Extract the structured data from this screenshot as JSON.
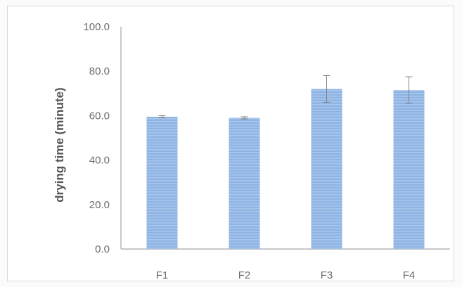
{
  "chart_data": {
    "type": "bar",
    "title": "",
    "xlabel": "",
    "ylabel": "drying time (minute)",
    "categories": [
      "F1",
      "F2",
      "F3",
      "F4"
    ],
    "values": [
      59.5,
      59.0,
      72.0,
      71.5
    ],
    "error": [
      0.5,
      0.5,
      6.0,
      6.0
    ],
    "ylim": [
      0,
      100
    ],
    "yticks": [
      "0.0",
      "20.0",
      "40.0",
      "60.0",
      "80.0",
      "100.0"
    ],
    "grid": false,
    "legend": "none",
    "colors": {
      "bar": "#8eb4e3",
      "bar_stripe": "#a9c6eb",
      "axis": "#a6a6a6",
      "error_bar": "#7f7f7f"
    }
  }
}
